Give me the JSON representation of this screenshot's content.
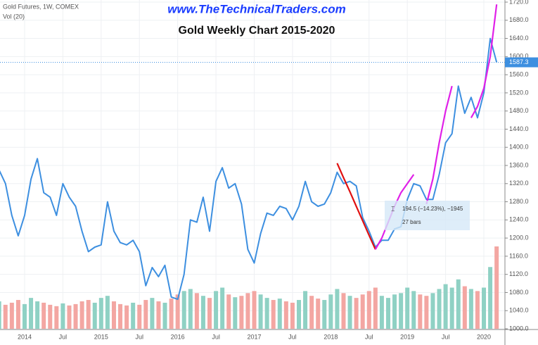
{
  "chart_data": {
    "type": "line",
    "symbol": "Gold Futures, 1W, COMEX",
    "volume_label": "Vol (20)",
    "watermark": "www.TheTechnicalTraders.com",
    "title": "Gold Weekly Chart 2015-2020",
    "categories": [
      null,
      null,
      null,
      null,
      "2014",
      null,
      null,
      null,
      null,
      null,
      "Jul",
      null,
      null,
      null,
      null,
      null,
      "2015",
      null,
      null,
      null,
      null,
      null,
      "Jul",
      null,
      null,
      null,
      null,
      null,
      "2016",
      null,
      null,
      null,
      null,
      null,
      "Jul",
      null,
      null,
      null,
      null,
      null,
      "2017",
      null,
      null,
      null,
      null,
      null,
      "Jul",
      null,
      null,
      null,
      null,
      null,
      "2018",
      null,
      null,
      null,
      null,
      null,
      "Jul",
      null,
      null,
      null,
      null,
      null,
      "2019",
      null,
      null,
      null,
      null,
      null,
      "Jul",
      null,
      null,
      null,
      null,
      null,
      "2020",
      null,
      null
    ],
    "series": [
      {
        "name": "Gold Futures",
        "color": "#3d8fe0",
        "values": [
          1350,
          1320,
          1250,
          1205,
          1250,
          1330,
          1375,
          1300,
          1290,
          1250,
          1320,
          1290,
          1270,
          1215,
          1170,
          1180,
          1185,
          1280,
          1215,
          1190,
          1185,
          1195,
          1170,
          1095,
          1135,
          1115,
          1140,
          1070,
          1065,
          1120,
          1240,
          1235,
          1290,
          1215,
          1325,
          1355,
          1310,
          1320,
          1275,
          1175,
          1145,
          1210,
          1255,
          1250,
          1270,
          1265,
          1240,
          1270,
          1325,
          1280,
          1270,
          1275,
          1300,
          1345,
          1320,
          1325,
          1315,
          1245,
          1215,
          1180,
          1195,
          1195,
          1220,
          1225,
          1285,
          1320,
          1315,
          1285,
          1285,
          1340,
          1410,
          1430,
          1535,
          1475,
          1510,
          1465,
          1520,
          1640,
          1587.3
        ]
      },
      {
        "color": "#e01010",
        "values": [
          null,
          null,
          null,
          null,
          null,
          null,
          null,
          null,
          null,
          null,
          null,
          null,
          null,
          null,
          null,
          null,
          null,
          null,
          null,
          null,
          null,
          null,
          null,
          null,
          null,
          null,
          null,
          null,
          null,
          null,
          null,
          null,
          null,
          null,
          null,
          null,
          null,
          null,
          null,
          null,
          null,
          null,
          null,
          null,
          null,
          null,
          null,
          null,
          null,
          null,
          null,
          null,
          null,
          1365,
          1333,
          1302,
          1270,
          1238,
          1206,
          1175,
          null,
          null,
          null,
          null,
          null,
          null,
          null,
          null,
          null,
          null,
          null,
          null,
          null,
          null,
          null,
          null,
          null,
          null,
          null
        ]
      },
      {
        "color": "#e020e8",
        "values": [
          null,
          null,
          null,
          null,
          null,
          null,
          null,
          null,
          null,
          null,
          null,
          null,
          null,
          null,
          null,
          null,
          null,
          null,
          null,
          null,
          null,
          null,
          null,
          null,
          null,
          null,
          null,
          null,
          null,
          null,
          null,
          null,
          null,
          null,
          null,
          null,
          null,
          null,
          null,
          null,
          null,
          null,
          null,
          null,
          null,
          null,
          null,
          null,
          null,
          null,
          null,
          null,
          null,
          null,
          null,
          null,
          null,
          null,
          null,
          1175,
          1200,
          1235,
          1270,
          1300,
          1320,
          1340,
          null,
          1275,
          1330,
          1410,
          1480,
          1535,
          null,
          null,
          1465,
          1490,
          1530,
          1600,
          1715
        ]
      }
    ],
    "volume": [
      40,
      35,
      38,
      42,
      36,
      45,
      40,
      38,
      35,
      33,
      37,
      34,
      36,
      40,
      42,
      38,
      45,
      48,
      40,
      36,
      34,
      38,
      35,
      42,
      45,
      40,
      38,
      44,
      50,
      55,
      58,
      52,
      48,
      45,
      55,
      60,
      50,
      46,
      48,
      52,
      55,
      50,
      45,
      42,
      44,
      40,
      38,
      42,
      55,
      48,
      44,
      42,
      50,
      58,
      52,
      48,
      45,
      50,
      55,
      60,
      48,
      45,
      50,
      52,
      60,
      55,
      50,
      48,
      52,
      58,
      65,
      60,
      72,
      62,
      58,
      55,
      60,
      90,
      120
    ],
    "last_price": 1587.3,
    "measure": {
      "text": "194.5 (−14.23%), −1945",
      "bars": "27 bars"
    },
    "ylim": [
      1000,
      1720
    ],
    "yticks": [
      {
        "value": 1000,
        "label": "1000.0"
      },
      {
        "value": 1040,
        "label": "1040.0"
      },
      {
        "value": 1080,
        "label": "1080.0"
      },
      {
        "value": 1120,
        "label": "1120.0"
      },
      {
        "value": 1160,
        "label": "1160.0"
      },
      {
        "value": 1200,
        "label": "1200.0"
      },
      {
        "value": 1240,
        "label": "1240.0"
      },
      {
        "value": 1280,
        "label": "1280.0"
      },
      {
        "value": 1320,
        "label": "1320.0"
      },
      {
        "value": 1360,
        "label": "1360.0"
      },
      {
        "value": 1400,
        "label": "1400.0"
      },
      {
        "value": 1440,
        "label": "1440.0"
      },
      {
        "value": 1480,
        "label": "1480.0"
      },
      {
        "value": 1520,
        "label": "1520.0"
      },
      {
        "value": 1560,
        "label": "1560.0"
      },
      {
        "value": 1600,
        "label": "1600.0"
      },
      {
        "value": 1640,
        "label": "1640.0"
      },
      {
        "value": 1680,
        "label": "1680.0"
      },
      {
        "value": 1720,
        "label": "1720.0"
      }
    ],
    "grid": true
  }
}
